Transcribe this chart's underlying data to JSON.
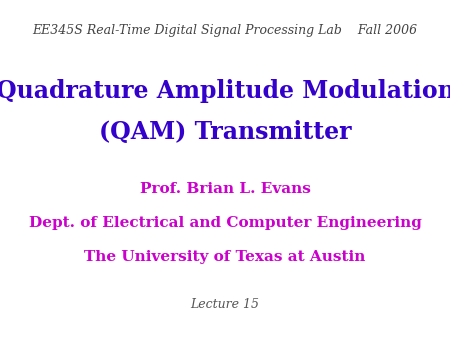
{
  "background_color": "#ffffff",
  "header_text": "EE345S Real-Time Digital Signal Processing Lab    Fall 2006",
  "header_color": "#444444",
  "header_fontsize": 9,
  "title_line1": "Quadrature Amplitude Modulation",
  "title_line2": "(QAM) Transmitter",
  "title_color": "#3300cc",
  "title_fontsize": 17,
  "title_weight": "bold",
  "prof_name": "Prof. Brian L. Evans",
  "dept": "Dept. of Electrical and Computer Engineering",
  "university": "The University of Texas at Austin",
  "info_color": "#cc00cc",
  "info_fontsize": 11,
  "info_weight": "bold",
  "lecture": "Lecture 15",
  "lecture_color": "#555555",
  "lecture_fontsize": 9,
  "lecture_style": "italic"
}
